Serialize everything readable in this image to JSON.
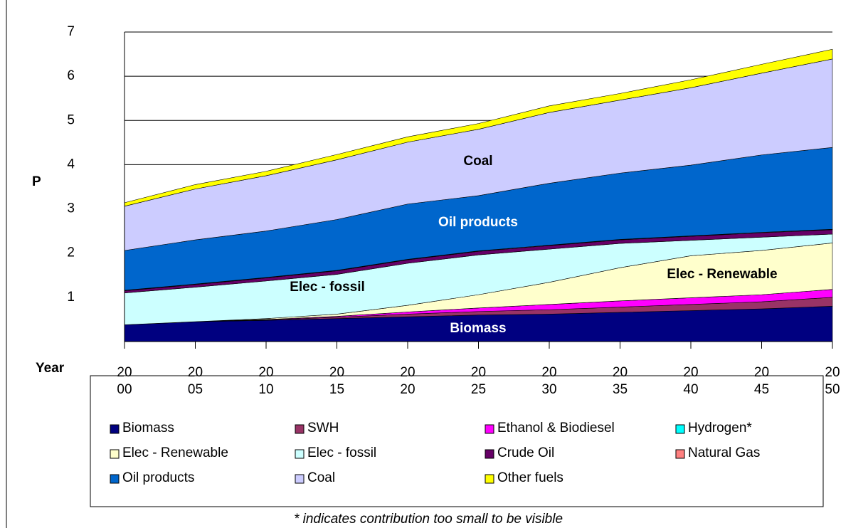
{
  "chart_data": {
    "type": "stacked_area",
    "y_label": "P",
    "x_label": "Year",
    "x": [
      2000,
      2005,
      2010,
      2015,
      2020,
      2025,
      2030,
      2035,
      2040,
      2045,
      2050
    ],
    "xlim": [
      2000,
      2050
    ],
    "xticks": [
      {
        "value": 2000,
        "label": "20 00"
      },
      {
        "value": 2005,
        "label": "20 05"
      },
      {
        "value": 2010,
        "label": "20 10"
      },
      {
        "value": 2015,
        "label": "20 15"
      },
      {
        "value": 2020,
        "label": "20 20"
      },
      {
        "value": 2025,
        "label": "20 25"
      },
      {
        "value": 2030,
        "label": "20 30"
      },
      {
        "value": 2035,
        "label": "20 35"
      },
      {
        "value": 2040,
        "label": "20 40"
      },
      {
        "value": 2045,
        "label": "20 45"
      },
      {
        "value": 2050,
        "label": "20 50"
      }
    ],
    "ylim": [
      0,
      7
    ],
    "yticks": [
      1,
      2,
      3,
      4,
      5,
      6,
      7
    ],
    "grid": true,
    "series": [
      {
        "name": "Biomass",
        "color": "#000080",
        "values": [
          0.38,
          0.45,
          0.48,
          0.52,
          0.56,
          0.6,
          0.62,
          0.66,
          0.7,
          0.74,
          0.8
        ]
      },
      {
        "name": "SWH",
        "color": "#993366",
        "values": [
          0,
          0,
          0.01,
          0.03,
          0.06,
          0.08,
          0.1,
          0.12,
          0.14,
          0.16,
          0.2
        ]
      },
      {
        "name": "Ethanol & Biodiesel",
        "color": "#ff00ff",
        "values": [
          0,
          0,
          0.01,
          0.02,
          0.05,
          0.08,
          0.12,
          0.14,
          0.15,
          0.16,
          0.18
        ]
      },
      {
        "name": "Hydrogen*",
        "color": "#00ffff",
        "values": [
          0,
          0,
          0,
          0,
          0,
          0,
          0,
          0,
          0,
          0,
          0
        ]
      },
      {
        "name": "Elec - Renewable",
        "color": "#ffffcc",
        "values": [
          0,
          0,
          0.02,
          0.05,
          0.15,
          0.3,
          0.5,
          0.75,
          0.95,
          1.0,
          1.05
        ]
      },
      {
        "name": "Elec - fossil",
        "color": "#ccffff",
        "values": [
          0.72,
          0.78,
          0.85,
          0.9,
          0.95,
          0.9,
          0.75,
          0.55,
          0.35,
          0.3,
          0.2
        ]
      },
      {
        "name": "Crude Oil",
        "color": "#660066",
        "values": [
          0.05,
          0.06,
          0.07,
          0.08,
          0.08,
          0.08,
          0.08,
          0.08,
          0.09,
          0.1,
          0.1
        ]
      },
      {
        "name": "Natural Gas",
        "color": "#ff8080",
        "values": [
          0.01,
          0.01,
          0.01,
          0.01,
          0.01,
          0.01,
          0.01,
          0.01,
          0.01,
          0.01,
          0.01
        ]
      },
      {
        "name": "Oil products",
        "color": "#0066cc",
        "values": [
          0.9,
          1.0,
          1.05,
          1.15,
          1.25,
          1.25,
          1.4,
          1.5,
          1.6,
          1.75,
          1.85
        ]
      },
      {
        "name": "Coal",
        "color": "#ccccff",
        "values": [
          1.0,
          1.15,
          1.25,
          1.35,
          1.4,
          1.5,
          1.6,
          1.65,
          1.75,
          1.85,
          2.0
        ]
      },
      {
        "name": "Other fuels",
        "color": "#ffff00",
        "values": [
          0.08,
          0.1,
          0.1,
          0.12,
          0.12,
          0.13,
          0.15,
          0.15,
          0.18,
          0.2,
          0.22
        ]
      }
    ],
    "annotations": [
      "Coal",
      "Oil products",
      "Elec - fossil",
      "Elec - Renewable",
      "Biomass"
    ],
    "footnote": "* indicates contribution too small to be visible"
  }
}
